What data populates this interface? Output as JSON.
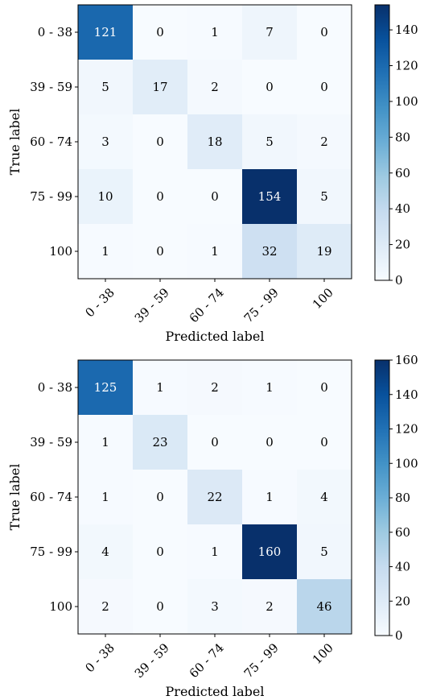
{
  "chart_data": [
    {
      "type": "heatmap",
      "title": "",
      "xlabel": "Predicted label",
      "ylabel": "True label",
      "x_categories": [
        "0 - 38",
        "39 - 59",
        "60 - 74",
        "75 - 99",
        "100"
      ],
      "y_categories": [
        "0 - 38",
        "39 - 59",
        "60 - 74",
        "75 - 99",
        "100"
      ],
      "values": [
        [
          121,
          0,
          1,
          7,
          0
        ],
        [
          5,
          17,
          2,
          0,
          0
        ],
        [
          3,
          0,
          18,
          5,
          2
        ],
        [
          10,
          0,
          0,
          154,
          5
        ],
        [
          1,
          0,
          1,
          32,
          19
        ]
      ],
      "colormap": "Blues",
      "colorbar": {
        "min": 0,
        "max": 154,
        "ticks": [
          0,
          20,
          40,
          60,
          80,
          100,
          120,
          140
        ]
      }
    },
    {
      "type": "heatmap",
      "title": "",
      "xlabel": "Predicted label",
      "ylabel": "True label",
      "x_categories": [
        "0 - 38",
        "39 - 59",
        "60 - 74",
        "75 - 99",
        "100"
      ],
      "y_categories": [
        "0 - 38",
        "39 - 59",
        "60 - 74",
        "75 - 99",
        "100"
      ],
      "values": [
        [
          125,
          1,
          2,
          1,
          0
        ],
        [
          1,
          23,
          0,
          0,
          0
        ],
        [
          1,
          0,
          22,
          1,
          4
        ],
        [
          4,
          0,
          1,
          160,
          5
        ],
        [
          2,
          0,
          3,
          2,
          46
        ]
      ],
      "colormap": "Blues",
      "colorbar": {
        "min": 0,
        "max": 160,
        "ticks": [
          0,
          20,
          40,
          60,
          80,
          100,
          120,
          140,
          160
        ]
      }
    }
  ]
}
